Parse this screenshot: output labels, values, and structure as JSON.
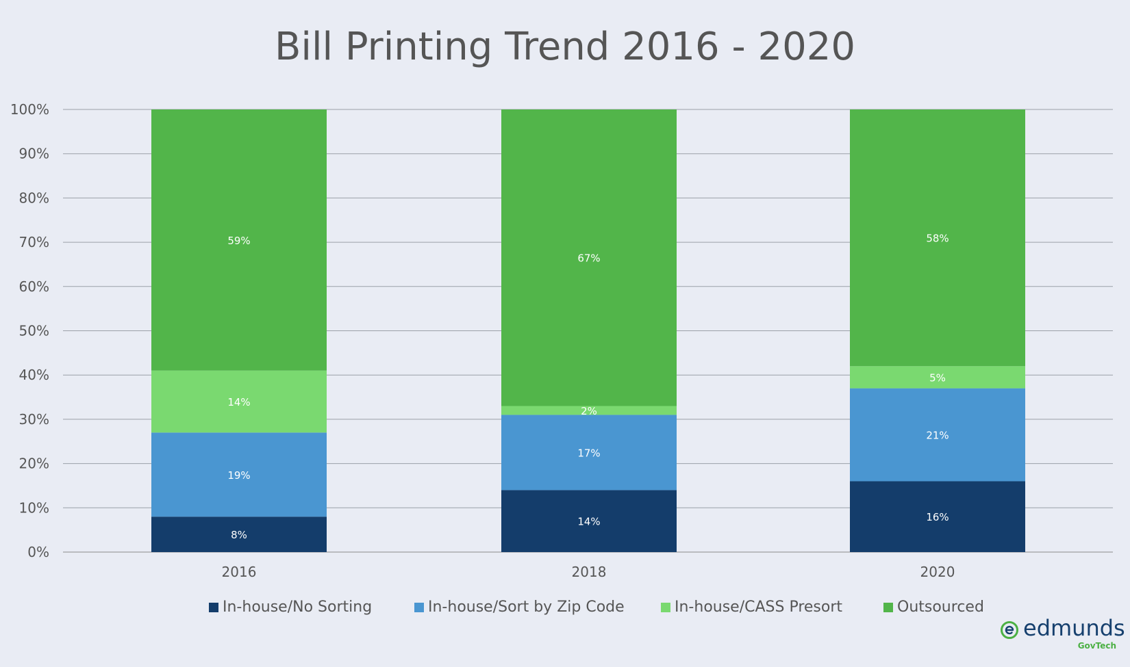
{
  "chart_data": {
    "type": "bar",
    "stacked": true,
    "title": "Bill Printing Trend 2016 - 2020",
    "categories": [
      "2016",
      "2018",
      "2020"
    ],
    "series": [
      {
        "name": "In-house/No Sorting",
        "values": [
          8,
          14,
          16
        ],
        "labels": [
          "8%",
          "14%",
          "16%"
        ],
        "color": "#143d6b"
      },
      {
        "name": "In-house/Sort by Zip Code",
        "values": [
          19,
          17,
          21
        ],
        "labels": [
          "19%",
          "17%",
          "21%"
        ],
        "color": "#4a96d1"
      },
      {
        "name": "In-house/CASS Presort",
        "values": [
          14,
          2,
          5
        ],
        "labels": [
          "14%",
          "2%",
          "5%"
        ],
        "color": "#7ad970"
      },
      {
        "name": "Outsourced",
        "values": [
          59,
          67,
          58
        ],
        "labels": [
          "59%",
          "67%",
          "58%"
        ],
        "color": "#52b54a"
      }
    ],
    "ylim": [
      0,
      100
    ],
    "yticks": [
      "0%",
      "10%",
      "20%",
      "30%",
      "40%",
      "50%",
      "60%",
      "70%",
      "80%",
      "90%",
      "100%"
    ],
    "grid": true,
    "legend_position": "bottom"
  },
  "logo": {
    "name": "edmunds",
    "sub": "GovTech",
    "icon": "edmunds-e-logo-icon",
    "color": "#16406e",
    "accent": "#4bb043"
  }
}
